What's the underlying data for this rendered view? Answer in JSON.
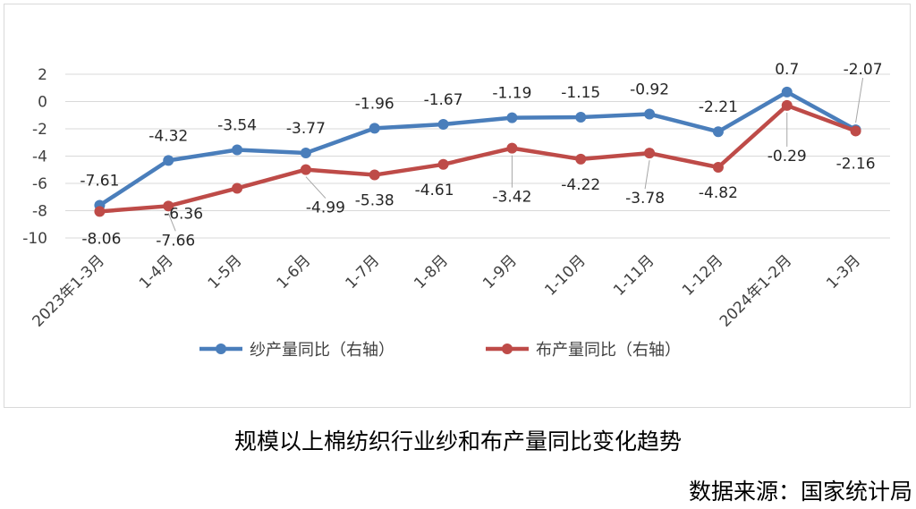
{
  "caption": {
    "title": "规模以上棉纺织行业纱和布产量同比变化趋势",
    "source": "数据来源：国家统计局"
  },
  "chart_data": {
    "type": "line",
    "title": "",
    "xlabel": "",
    "ylabel": "",
    "ylim": [
      -10,
      2
    ],
    "yticks": [
      2,
      0,
      -2,
      -4,
      -6,
      -8,
      -10
    ],
    "grid": true,
    "legend_position": "bottom",
    "categories": [
      "2023年1-3月",
      "1-4月",
      "1-5月",
      "1-6月",
      "1-7月",
      "1-8月",
      "1-9月",
      "1-10月",
      "1-11月",
      "1-12月",
      "2024年1-2月",
      "1-3月"
    ],
    "series": [
      {
        "name": "纱产量同比（右轴）",
        "color": "#4a7ebb",
        "values": [
          -7.61,
          -4.32,
          -3.54,
          -3.77,
          -1.96,
          -1.67,
          -1.19,
          -1.15,
          -0.92,
          -2.21,
          0.7,
          -2.07
        ],
        "labels": [
          "-7.61",
          "-4.32",
          "-3.54",
          "-3.77",
          "-1.96",
          "-1.67",
          "-1.19",
          "-1.15",
          "-0.92",
          "-2.21",
          "0.7",
          "-2.07"
        ]
      },
      {
        "name": "布产量同比（右轴）",
        "color": "#be4b48",
        "values": [
          -8.06,
          -7.66,
          -6.36,
          -4.99,
          -5.38,
          -4.61,
          -3.42,
          -4.22,
          -3.78,
          -4.82,
          -0.29,
          -2.16
        ],
        "labels": [
          "-8.06",
          "-7.66",
          "-6.36",
          "-4.99",
          "-5.38",
          "-4.61",
          "-3.42",
          "-4.22",
          "-3.78",
          "-4.82",
          "-0.29",
          "-2.16"
        ]
      }
    ]
  }
}
